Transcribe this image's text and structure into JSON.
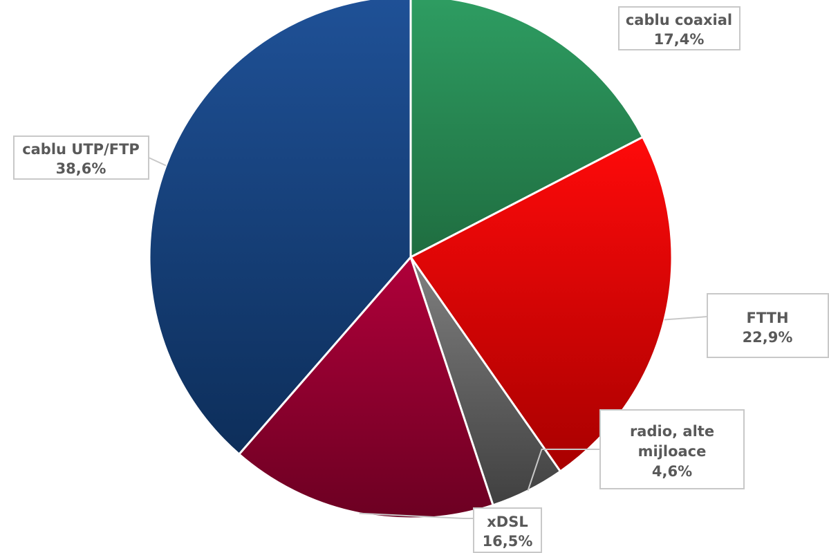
{
  "chart_data": {
    "type": "pie",
    "title": "",
    "start_angle_deg": 0,
    "direction": "clockwise",
    "slices": [
      {
        "label": "cablu coaxial",
        "value": 17.4,
        "value_label": "17,4%",
        "color_top": "#2e9d62",
        "color_bottom": "#1f6d40"
      },
      {
        "label": "FTTH",
        "value": 22.9,
        "value_label": "22,9%",
        "color_top": "#ff0a0a",
        "color_bottom": "#a80000"
      },
      {
        "label": "radio, alte mijloace",
        "value": 4.6,
        "value_label": "4,6%",
        "color_top": "#808080",
        "color_bottom": "#404040"
      },
      {
        "label": "xDSL",
        "value": 16.5,
        "value_label": "16,5%",
        "color_top": "#b0003a",
        "color_bottom": "#6c0022"
      },
      {
        "label": "cablu UTP/FTP",
        "value": 38.6,
        "value_label": "38,6%",
        "color_top": "#1f5197",
        "color_bottom": "#0d2e5a"
      }
    ]
  }
}
